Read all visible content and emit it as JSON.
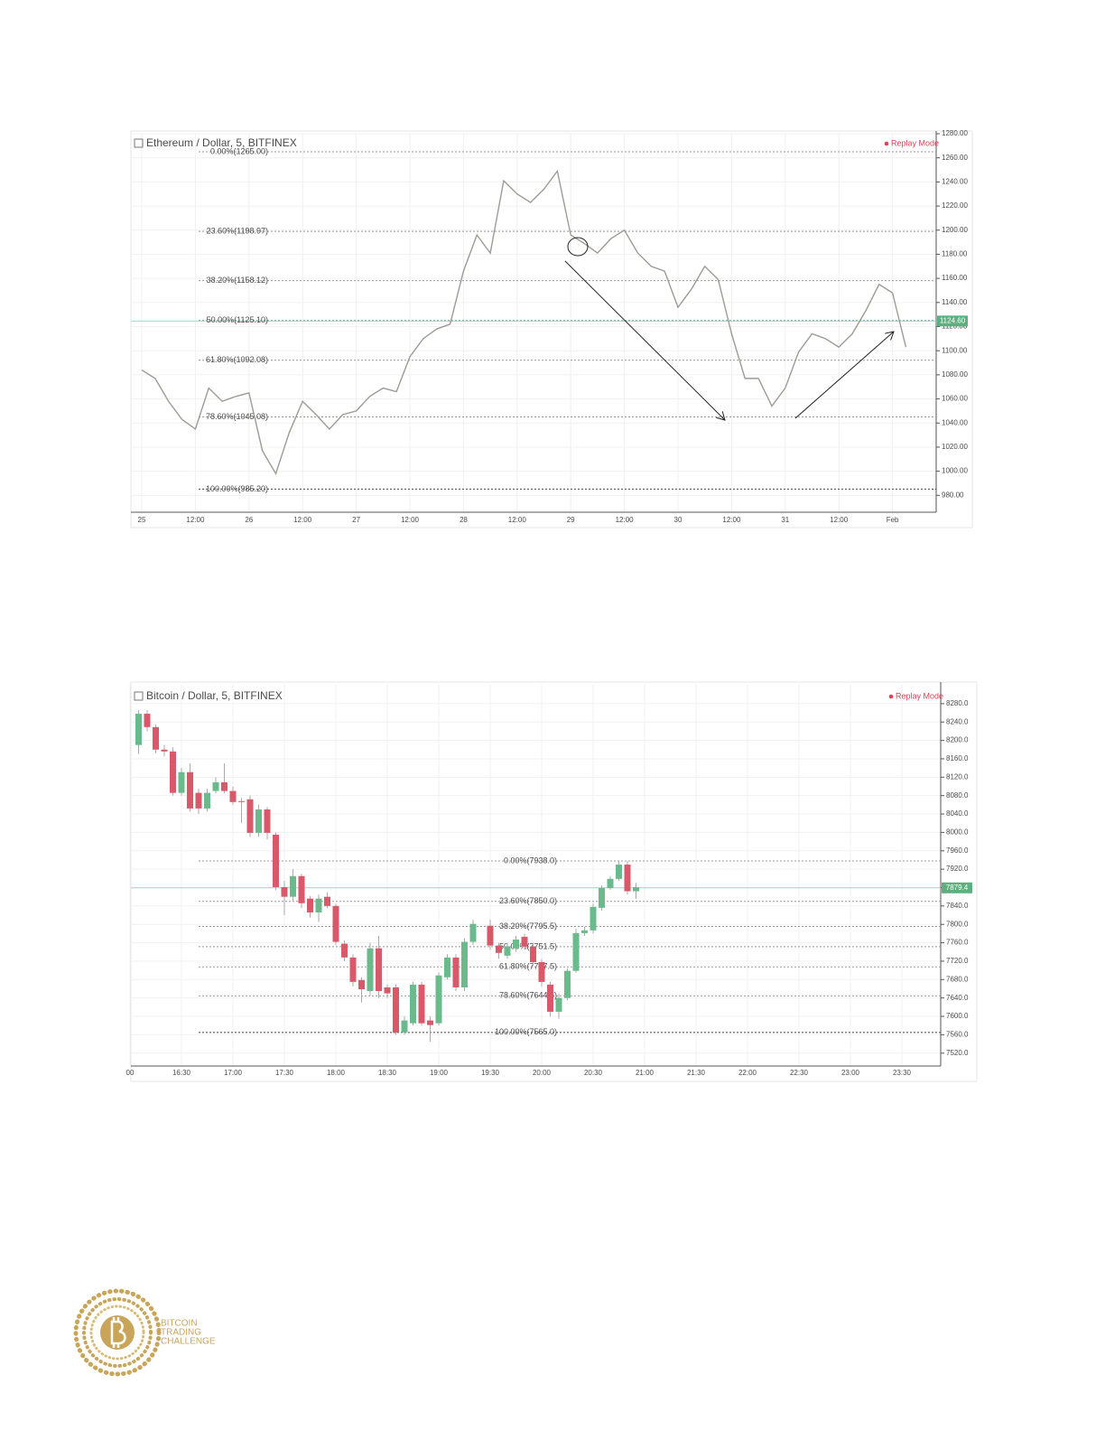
{
  "chart_data": [
    {
      "type": "line",
      "title": "Ethereum / Dollar, 5, BITFINEX",
      "mode": "Replay Mode",
      "color": "#9e9a96",
      "categories": [
        "25",
        null,
        null,
        null,
        "12:00",
        null,
        null,
        null,
        "26",
        null,
        null,
        null,
        "12:00",
        null,
        null,
        null,
        "27",
        null,
        null,
        null,
        "12:00",
        null,
        null,
        null,
        "28",
        null,
        null,
        null,
        "12:00",
        null,
        null,
        null,
        "29",
        null,
        null,
        null,
        "12:00",
        null,
        null,
        null,
        "30",
        null,
        null,
        null,
        "12:00",
        null,
        null,
        null,
        "31",
        null,
        null,
        null,
        "12:00",
        null,
        null,
        null,
        "Feb",
        null
      ],
      "values": [
        1084,
        1077,
        1058,
        1043,
        1035,
        1069,
        1058,
        1062,
        1065,
        1017,
        998,
        1032,
        1058,
        1047,
        1035,
        1047,
        1050,
        1062,
        1069,
        1066,
        1095,
        1110,
        1118,
        1122,
        1166,
        1196,
        1181,
        1241,
        1230,
        1223,
        1234,
        1249,
        1196,
        1189,
        1181,
        1193,
        1200,
        1181,
        1170,
        1166,
        1136,
        1151,
        1170,
        1159,
        1114,
        1077,
        1077,
        1054,
        1069,
        1099,
        1114,
        1110,
        1103,
        1114,
        1133,
        1155,
        1148,
        1103
      ],
      "ylim": [
        966,
        1280
      ],
      "yticks": [
        {
          "value": 980,
          "label": "980.00"
        },
        {
          "value": 1000,
          "label": "1000.00"
        },
        {
          "value": 1020,
          "label": "1020.00"
        },
        {
          "value": 1040,
          "label": "1040.00"
        },
        {
          "value": 1060,
          "label": "1060.00"
        },
        {
          "value": 1080,
          "label": "1080.00"
        },
        {
          "value": 1100,
          "label": "1100.00"
        },
        {
          "value": 1120,
          "label": "1120.00"
        },
        {
          "value": 1140,
          "label": "1140.00"
        },
        {
          "value": 1160,
          "label": "1160.00"
        },
        {
          "value": 1180,
          "label": "1180.00"
        },
        {
          "value": 1200,
          "label": "1200.00"
        },
        {
          "value": 1220,
          "label": "1220.00"
        },
        {
          "value": 1240,
          "label": "1240.00"
        },
        {
          "value": 1260,
          "label": "1260.00"
        },
        {
          "value": 1280,
          "label": "1280.00"
        }
      ],
      "levels": [
        {
          "value": 1265,
          "label": "0.00%(1265.00)"
        },
        {
          "value": 1198.97,
          "label": "23.60%(1198.97)"
        },
        {
          "value": 1158.12,
          "label": "38.20%(1158.12)"
        },
        {
          "value": 1125.1,
          "label": "50.00%(1125.10)"
        },
        {
          "value": 1092.08,
          "label": "61.80%(1092.08)"
        },
        {
          "value": 1045.08,
          "label": "78.60%(1045.08)"
        },
        {
          "value": 985.2,
          "label": "100.00%(985.20)"
        }
      ],
      "last_price": {
        "value": 1124.6,
        "label": "1124.60"
      },
      "grid": true
    },
    {
      "type": "candlestick",
      "title": "Bitcoin / Dollar, 5, BITFINEX",
      "mode": "Replay Mode",
      "up_color": "#6aba8c",
      "down_color": "#d9596a",
      "categories": [
        "00",
        null,
        null,
        null,
        null,
        null,
        "16:30",
        null,
        null,
        null,
        null,
        null,
        "17:00",
        null,
        null,
        null,
        null,
        null,
        "17:30",
        null,
        null,
        null,
        null,
        null,
        "18:00",
        null,
        null,
        null,
        null,
        null,
        "18:30",
        null,
        null,
        null,
        null,
        null,
        "19:00",
        null,
        null,
        null,
        null,
        null,
        "19:30",
        null,
        null,
        null,
        null,
        null,
        "20:00",
        null,
        null,
        null,
        null,
        null,
        "20:30",
        null,
        null,
        null,
        null,
        null,
        "21:00",
        null,
        null,
        null,
        null,
        null,
        "21:30",
        null,
        null,
        null,
        null,
        null,
        "22:00",
        null,
        null,
        null,
        null,
        null,
        "22:30",
        null,
        null,
        null,
        null,
        null,
        "23:00",
        null,
        null,
        null,
        null,
        null,
        "23:30",
        null,
        null,
        null,
        null
      ],
      "open": [
        null,
        8190,
        8258,
        8229,
        8180,
        8176,
        8086,
        8131,
        8086,
        8052,
        8090,
        8109,
        8090,
        8068,
        8072,
        7999,
        8050,
        7995,
        7881,
        7860,
        7905,
        7856,
        7826,
        7860,
        7840,
        7758,
        7728,
        7679,
        7655,
        7748,
        7663,
        7663,
        7565,
        7585,
        7669,
        7591,
        7585,
        7685,
        7728,
        7663,
        7762,
        null,
        7797,
        7754,
        7732,
        7748,
        7773,
        7752,
        7718,
        7669,
        7610,
        7640,
        7699,
        7781,
        7787,
        7836,
        7879,
        7899,
        7930,
        7872,
        null,
        null,
        null,
        null,
        null,
        null,
        null,
        null,
        null,
        null,
        null,
        null,
        null,
        null,
        null,
        null,
        null,
        null,
        null,
        null,
        null,
        null,
        null,
        null,
        null,
        null,
        null,
        null,
        null,
        null,
        null,
        null,
        null,
        null,
        null
      ],
      "high": [
        null,
        8266,
        8266,
        8235,
        8190,
        8185,
        8140,
        8150,
        8095,
        8095,
        8120,
        8150,
        8100,
        8075,
        8080,
        8060,
        8055,
        8000,
        7895,
        7920,
        7910,
        7862,
        7865,
        7870,
        7845,
        7765,
        7735,
        7685,
        7760,
        7775,
        7670,
        7670,
        7600,
        7675,
        7675,
        7600,
        7695,
        7735,
        7735,
        7770,
        7810,
        null,
        7810,
        7760,
        7760,
        7775,
        7780,
        7760,
        7725,
        7675,
        7650,
        7705,
        7790,
        7795,
        7845,
        7885,
        7905,
        7938,
        7938,
        7890,
        null,
        null,
        null,
        null,
        null,
        null,
        null,
        null,
        null,
        null,
        null,
        null,
        null,
        null,
        null,
        null,
        null,
        null,
        null,
        null,
        null,
        null,
        null,
        null,
        null,
        null,
        null,
        null,
        null,
        null,
        null,
        null,
        null,
        null,
        null
      ],
      "low": [
        null,
        8170,
        8220,
        8172,
        8165,
        8080,
        8080,
        8045,
        8040,
        8045,
        8085,
        8085,
        8060,
        8020,
        7990,
        7990,
        7985,
        7875,
        7820,
        7850,
        7835,
        7815,
        7805,
        7835,
        7755,
        7720,
        7665,
        7630,
        7645,
        7640,
        7640,
        7560,
        7560,
        7580,
        7580,
        7545,
        7580,
        7680,
        7655,
        7655,
        7755,
        null,
        7745,
        7725,
        7725,
        7740,
        7745,
        7710,
        7665,
        7600,
        7595,
        7635,
        7695,
        7775,
        7780,
        7830,
        7875,
        7895,
        7865,
        7855,
        null,
        null,
        null,
        null,
        null,
        null,
        null,
        null,
        null,
        null,
        null,
        null,
        null,
        null,
        null,
        null,
        null,
        null,
        null,
        null,
        null,
        null,
        null,
        null,
        null,
        null,
        null,
        null,
        null,
        null,
        null,
        null,
        null,
        null,
        null
      ],
      "close": [
        null,
        8258,
        8229,
        8180,
        8176,
        8086,
        8131,
        8052,
        8052,
        8086,
        8109,
        8090,
        8066,
        8066,
        7999,
        8050,
        7999,
        7881,
        7860,
        7905,
        7846,
        7826,
        7856,
        7840,
        7762,
        7728,
        7675,
        7659,
        7748,
        7655,
        7650,
        7565,
        7591,
        7669,
        7585,
        7581,
        7689,
        7728,
        7663,
        7762,
        7801,
        null,
        7754,
        7738,
        7752,
        7767,
        7752,
        7718,
        7675,
        7610,
        7640,
        7699,
        7781,
        7787,
        7838,
        7879,
        7899,
        7930,
        7872,
        7881,
        null,
        null,
        null,
        null,
        null,
        null,
        null,
        null,
        null,
        null,
        null,
        null,
        null,
        null,
        null,
        null,
        null,
        null,
        null,
        null,
        null,
        null,
        null,
        null,
        null,
        null,
        null,
        null,
        null,
        null,
        null,
        null,
        null,
        null,
        null
      ],
      "ylim": [
        7492,
        8321
      ],
      "yticks": [
        {
          "value": 7520,
          "label": "7520.0"
        },
        {
          "value": 7560,
          "label": "7560.0"
        },
        {
          "value": 7600,
          "label": "7600.0"
        },
        {
          "value": 7640,
          "label": "7640.0"
        },
        {
          "value": 7680,
          "label": "7680.0"
        },
        {
          "value": 7720,
          "label": "7720.0"
        },
        {
          "value": 7760,
          "label": "7760.0"
        },
        {
          "value": 7800,
          "label": "7800.0"
        },
        {
          "value": 7840,
          "label": "7840.0"
        },
        {
          "value": 7880,
          "label": "7880.0"
        },
        {
          "value": 7920,
          "label": "7920.0"
        },
        {
          "value": 7960,
          "label": "7960.0"
        },
        {
          "value": 8000,
          "label": "8000.0"
        },
        {
          "value": 8040,
          "label": "8040.0"
        },
        {
          "value": 8080,
          "label": "8080.0"
        },
        {
          "value": 8120,
          "label": "8120.0"
        },
        {
          "value": 8160,
          "label": "8160.0"
        },
        {
          "value": 8200,
          "label": "8200.0"
        },
        {
          "value": 8240,
          "label": "8240.0"
        },
        {
          "value": 8280,
          "label": "8280.0"
        }
      ],
      "levels": [
        {
          "value": 7938,
          "label": "0.00%(7938.0)"
        },
        {
          "value": 7850,
          "label": "23.60%(7850.0)"
        },
        {
          "value": 7795.5,
          "label": "38.20%(7795.5)"
        },
        {
          "value": 7751.5,
          "label": "50.00%(7751.5)"
        },
        {
          "value": 7707.5,
          "label": "61.80%(7707.5)"
        },
        {
          "value": 7644.5,
          "label": "78.60%(7644.5)"
        },
        {
          "value": 7565,
          "label": "100.00%(7565.0)"
        }
      ],
      "last_price": {
        "value": 7879.4,
        "label": "7879.4"
      },
      "grid": true
    }
  ],
  "logo": {
    "text": [
      "BITCOIN",
      "TRADING",
      "CHALLENGE"
    ]
  }
}
